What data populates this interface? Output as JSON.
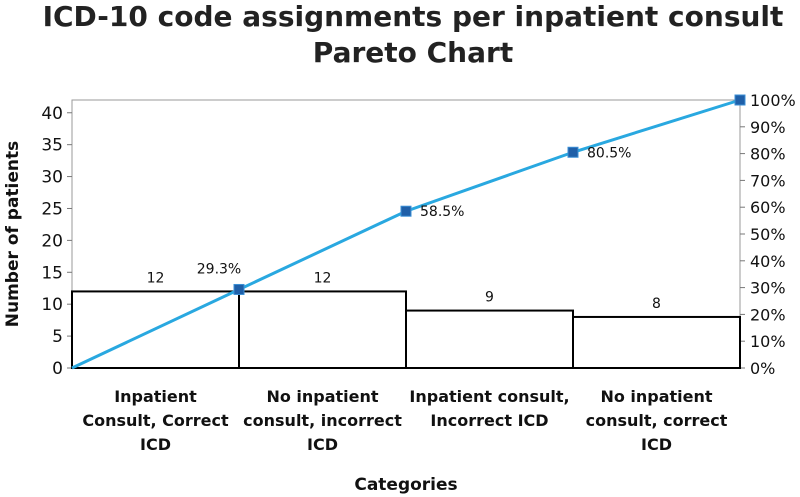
{
  "chart_data": {
    "type": "bar",
    "title": "ICD-10 code assignments per inpatient consult",
    "subtitle": "Pareto Chart",
    "xlabel": "Categories",
    "ylabel": "Number of patients",
    "categories": [
      "Inpatient Consult, Correct ICD",
      "No inpatient consult, incorrect ICD",
      "Inpatient consult, Incorrect ICD",
      "No inpatient consult, correct ICD"
    ],
    "category_lines": [
      [
        "Inpatient",
        "Consult, Correct",
        "ICD"
      ],
      [
        "No inpatient",
        "consult, incorrect",
        "ICD"
      ],
      [
        "Inpatient consult,",
        "Incorrect ICD"
      ],
      [
        "No inpatient",
        "consult, correct",
        "ICD"
      ]
    ],
    "values": [
      12,
      12,
      9,
      8
    ],
    "cumulative_percent": [
      0,
      29.3,
      58.5,
      80.5,
      100
    ],
    "cumulative_labels": [
      "29.3%",
      "58.5%",
      "80.5%"
    ],
    "ylim": [
      0,
      42
    ],
    "yticks": [
      "0",
      "5",
      "10",
      "15",
      "20",
      "25",
      "30",
      "35",
      "40"
    ],
    "y2ticks": [
      "0%",
      "10%",
      "20%",
      "30%",
      "40%",
      "50%",
      "60%",
      "70%",
      "80%",
      "90%",
      "100%"
    ],
    "line_color": "#29a8e0",
    "marker_color": "#1f5fa8",
    "bar_fill": "#ffffff",
    "bar_stroke": "#000000",
    "grid": false,
    "legend": "none"
  }
}
